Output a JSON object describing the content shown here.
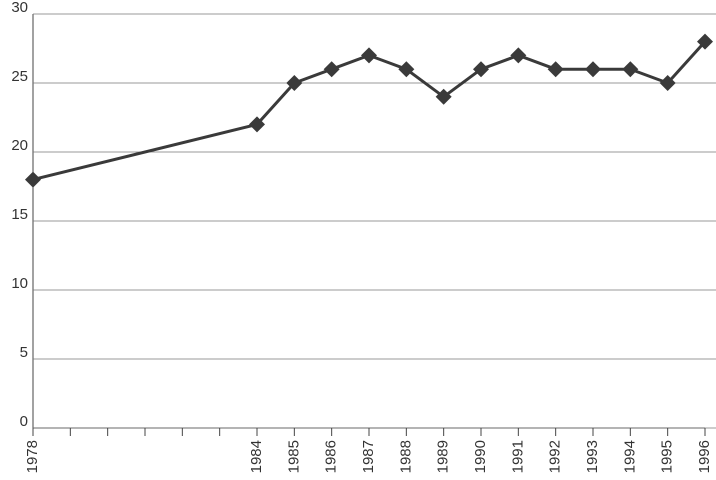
{
  "chart_data": {
    "type": "line",
    "x": [
      1978,
      1984,
      1985,
      1986,
      1987,
      1988,
      1989,
      1990,
      1991,
      1992,
      1993,
      1994,
      1995,
      1996
    ],
    "values": [
      18,
      22,
      25,
      26,
      27,
      26,
      24,
      26,
      27,
      26,
      26,
      26,
      25,
      28
    ],
    "color": "#3a3a3a",
    "xlim": [
      1978,
      1996
    ],
    "xticks": [
      1978,
      1984,
      1985,
      1986,
      1987,
      1988,
      1989,
      1990,
      1991,
      1992,
      1993,
      1994,
      1995,
      1996
    ],
    "xminorticks": [
      1979,
      1980,
      1981,
      1982,
      1983
    ],
    "ylim": [
      0,
      30
    ],
    "yticks": [
      0,
      5,
      10,
      15,
      20,
      25,
      30
    ],
    "grid": true
  }
}
